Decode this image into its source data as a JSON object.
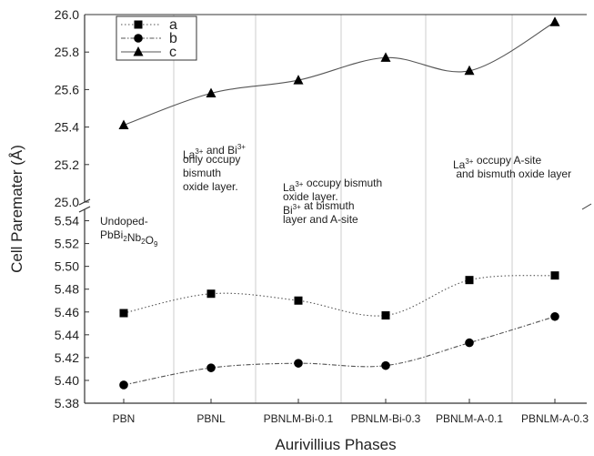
{
  "chart_data": {
    "type": "line",
    "xlabel": "Aurivillius Phases",
    "ylabel": "Cell Paremater (Å)",
    "categories": [
      "PBN",
      "PBNL",
      "PBNLM-Bi-0.1",
      "PBNLM-Bi-0.3",
      "PBNLM-A-0.1",
      "PBNLM-A-0.3"
    ],
    "axis_break": true,
    "upper_segment": {
      "ylim": [
        25.0,
        26.0
      ],
      "ticks": [
        "25.0",
        "25.2",
        "25.4",
        "25.6",
        "25.8",
        "26.0"
      ]
    },
    "lower_segment": {
      "ylim": [
        5.38,
        5.55
      ],
      "ticks": [
        "5.38",
        "5.40",
        "5.42",
        "5.44",
        "5.46",
        "5.48",
        "5.50",
        "5.52",
        "5.54"
      ]
    },
    "series": [
      {
        "name": "a",
        "marker": "square",
        "line": "dotted",
        "segment": "lower",
        "values": [
          5.459,
          5.476,
          5.47,
          5.457,
          5.488,
          5.492
        ]
      },
      {
        "name": "b",
        "marker": "circle",
        "line": "dash-dot",
        "segment": "lower",
        "values": [
          5.396,
          5.411,
          5.415,
          5.413,
          5.433,
          5.456
        ]
      },
      {
        "name": "c",
        "marker": "triangle",
        "line": "solid",
        "segment": "upper",
        "values": [
          25.41,
          25.58,
          25.65,
          25.77,
          25.7,
          25.96
        ]
      }
    ],
    "legend": [
      "a",
      "b",
      "c"
    ],
    "legend_position": "top-left",
    "colors": {
      "line": "#555555",
      "marker": "#000000",
      "divider": "#cccccc"
    },
    "annotations": [
      {
        "id": "ann1",
        "lines": [
          {
            "pre": "Undoped-"
          },
          {
            "pre": "PbBi",
            "sub1": "2",
            "mid": "Nb",
            "sub2": "2",
            "post": "O",
            "sub3": "9"
          }
        ]
      },
      {
        "id": "ann2",
        "lines": [
          {
            "pre": "La",
            "sup1": "3+",
            "mid": " and Bi",
            "sup2": "3+"
          },
          {
            "pre": "only occupy"
          },
          {
            "pre": "bismuth"
          },
          {
            "pre": "oxide  layer."
          }
        ]
      },
      {
        "id": "ann3",
        "lines": [
          {
            "pre": "La",
            "sup1": "3+",
            "post": " occupy bismuth"
          },
          {
            "pre": "oxide  layer."
          },
          {
            "pre": "Bi",
            "sup1": "3+",
            "post": " at bismuth"
          },
          {
            "pre": "layer and A-site"
          }
        ]
      },
      {
        "id": "ann4",
        "lines": [
          {
            "pre": "La",
            "sup1": "3+",
            "post": " occupy A-site"
          },
          {
            "pre": " and bismuth oxide layer"
          }
        ]
      }
    ]
  }
}
